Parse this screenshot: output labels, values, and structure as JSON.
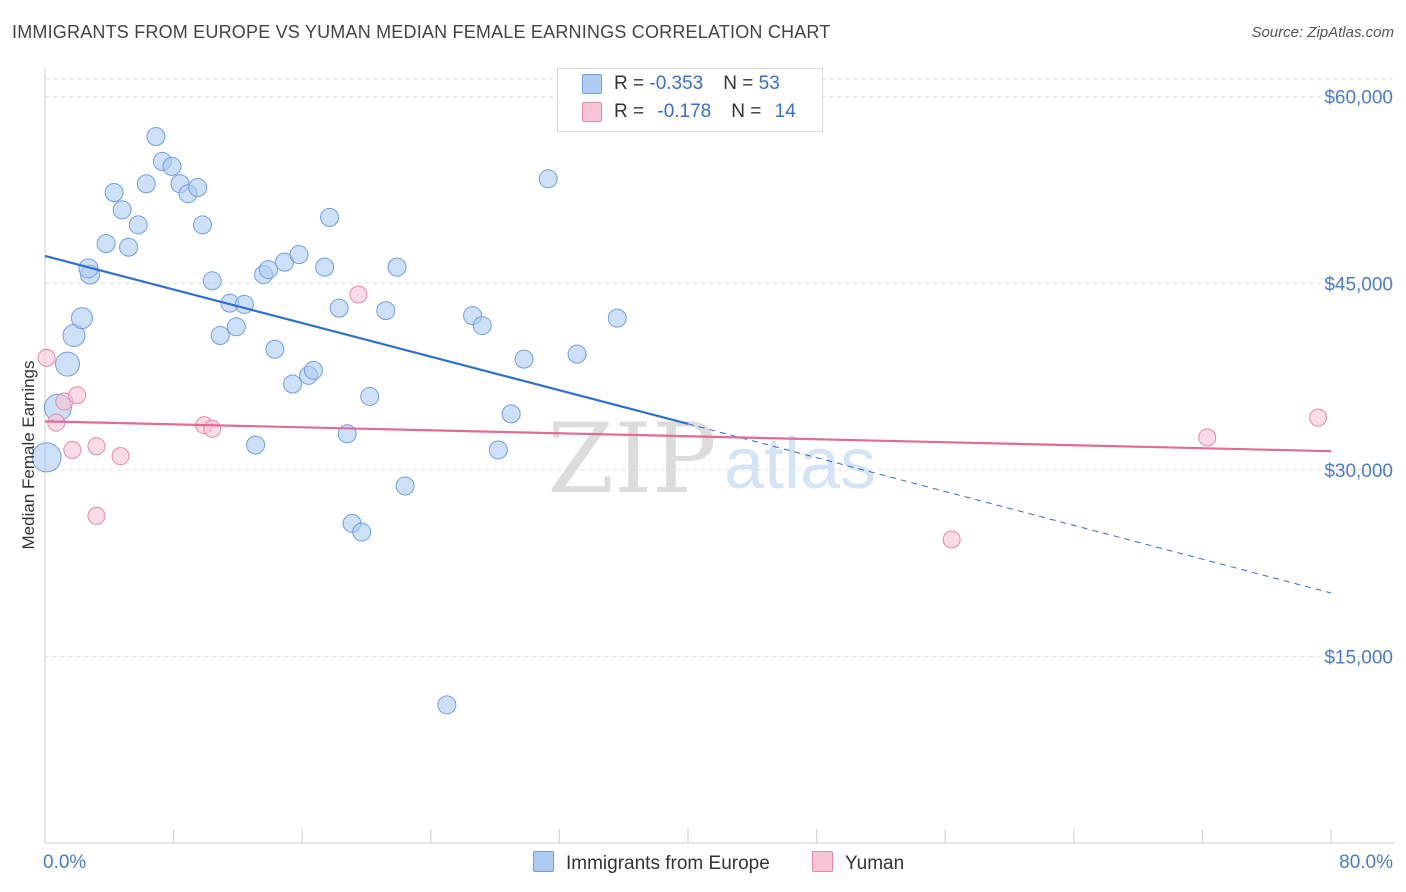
{
  "title": "IMMIGRANTS FROM EUROPE VS YUMAN MEDIAN FEMALE EARNINGS CORRELATION CHART",
  "source": "Source: ZipAtlas.com",
  "watermark": {
    "zip": "ZIP",
    "atlas": "atlas"
  },
  "legend": {
    "rows": [
      {
        "r_label": "R = ",
        "r_value": "-0.353",
        "n_label": "N = ",
        "n_value": "53",
        "color": "#aeccf2",
        "border": "#6f9fe0"
      },
      {
        "r_label": "R = ",
        "r_value": "-0.178",
        "n_label": "N = ",
        "n_value": "14",
        "color": "#f8c3d4",
        "border": "#e48aa8"
      }
    ]
  },
  "chart_data": {
    "type": "scatter",
    "title": "IMMIGRANTS FROM EUROPE VS YUMAN MEDIAN FEMALE EARNINGS CORRELATION CHART",
    "xlabel": "",
    "ylabel": "Median Female Earnings",
    "xlim": [
      0,
      80
    ],
    "ylim": [
      0,
      63000
    ],
    "x_tick_labels": [
      "0.0%",
      "80.0%"
    ],
    "y_ticks": [
      15000,
      30000,
      45000,
      60000
    ],
    "y_tick_labels": [
      "$15,000",
      "$30,000",
      "$45,000",
      "$60,000"
    ],
    "grid": true,
    "legend_position": "top-center",
    "series": [
      {
        "name": "Immigrants from Europe",
        "color": "#aeccf2",
        "stroke": "#6f9fe0",
        "points": [
          [
            0.1,
            31000,
            22
          ],
          [
            0.8,
            35000,
            20
          ],
          [
            1.4,
            38500,
            17
          ],
          [
            1.8,
            40800,
            15
          ],
          [
            2.3,
            42200,
            14
          ],
          [
            2.8,
            45700,
            12
          ],
          [
            2.7,
            46200,
            12
          ],
          [
            3.8,
            48200,
            11
          ],
          [
            4.3,
            52300,
            11
          ],
          [
            4.8,
            50900,
            11
          ],
          [
            5.2,
            47900,
            11
          ],
          [
            5.8,
            49700,
            11
          ],
          [
            6.3,
            53000,
            11
          ],
          [
            6.9,
            56800,
            11
          ],
          [
            7.3,
            54800,
            11
          ],
          [
            7.9,
            54400,
            11
          ],
          [
            8.4,
            53000,
            11
          ],
          [
            8.9,
            52200,
            11
          ],
          [
            9.5,
            52700,
            11
          ],
          [
            9.8,
            49700,
            11
          ],
          [
            10.4,
            45200,
            11
          ],
          [
            10.9,
            40800,
            11
          ],
          [
            11.5,
            43400,
            11
          ],
          [
            11.9,
            41500,
            11
          ],
          [
            12.4,
            43300,
            11
          ],
          [
            13.1,
            32000,
            11
          ],
          [
            13.6,
            45700,
            11
          ],
          [
            13.9,
            46100,
            11
          ],
          [
            14.3,
            39700,
            11
          ],
          [
            14.9,
            46700,
            11
          ],
          [
            15.4,
            36900,
            11
          ],
          [
            15.8,
            47300,
            11
          ],
          [
            16.4,
            37600,
            11
          ],
          [
            16.7,
            38000,
            11
          ],
          [
            17.4,
            46300,
            11
          ],
          [
            17.7,
            50300,
            11
          ],
          [
            18.3,
            43000,
            11
          ],
          [
            18.8,
            32900,
            11
          ],
          [
            19.1,
            25700,
            11
          ],
          [
            19.7,
            25000,
            11
          ],
          [
            20.2,
            35900,
            11
          ],
          [
            21.2,
            42800,
            11
          ],
          [
            21.9,
            46300,
            11
          ],
          [
            22.4,
            28700,
            11
          ],
          [
            25.0,
            11100,
            11
          ],
          [
            26.6,
            42400,
            11
          ],
          [
            27.2,
            41600,
            11
          ],
          [
            28.2,
            31600,
            11
          ],
          [
            29.0,
            34500,
            11
          ],
          [
            29.8,
            38900,
            11
          ],
          [
            31.3,
            53400,
            11
          ],
          [
            33.1,
            39300,
            11
          ],
          [
            35.6,
            42200,
            11
          ]
        ]
      },
      {
        "name": "Yuman",
        "color": "#f8c3d4",
        "stroke": "#e48aa8",
        "points": [
          [
            0.1,
            39000,
            10
          ],
          [
            0.7,
            33800,
            10
          ],
          [
            1.2,
            35500,
            10
          ],
          [
            1.7,
            31600,
            10
          ],
          [
            2.0,
            36000,
            10
          ],
          [
            3.2,
            26300,
            10
          ],
          [
            3.2,
            31900,
            10
          ],
          [
            4.7,
            31100,
            10
          ],
          [
            9.9,
            33600,
            10
          ],
          [
            10.4,
            33300,
            10
          ],
          [
            19.5,
            44100,
            10
          ],
          [
            56.4,
            24400,
            10
          ],
          [
            72.3,
            32600,
            10
          ],
          [
            79.2,
            34200,
            10
          ]
        ]
      }
    ],
    "trendlines": [
      {
        "series": "Immigrants from Europe",
        "color": "#2f6fcf",
        "x0": 0,
        "y0": 47200,
        "x1": 40,
        "y1": 33700,
        "dashed_to_x": 80,
        "dashed_to_y": 20100
      },
      {
        "series": "Yuman",
        "color": "#e46a96",
        "x0": 0,
        "y0": 33900,
        "x1": 80,
        "y1": 31500
      }
    ]
  },
  "bottom_legend": [
    {
      "label": "Immigrants from Europe",
      "color": "#aeccf2",
      "border": "#6f9fe0"
    },
    {
      "label": "Yuman",
      "color": "#f8c3d4",
      "border": "#e48aa8"
    }
  ]
}
